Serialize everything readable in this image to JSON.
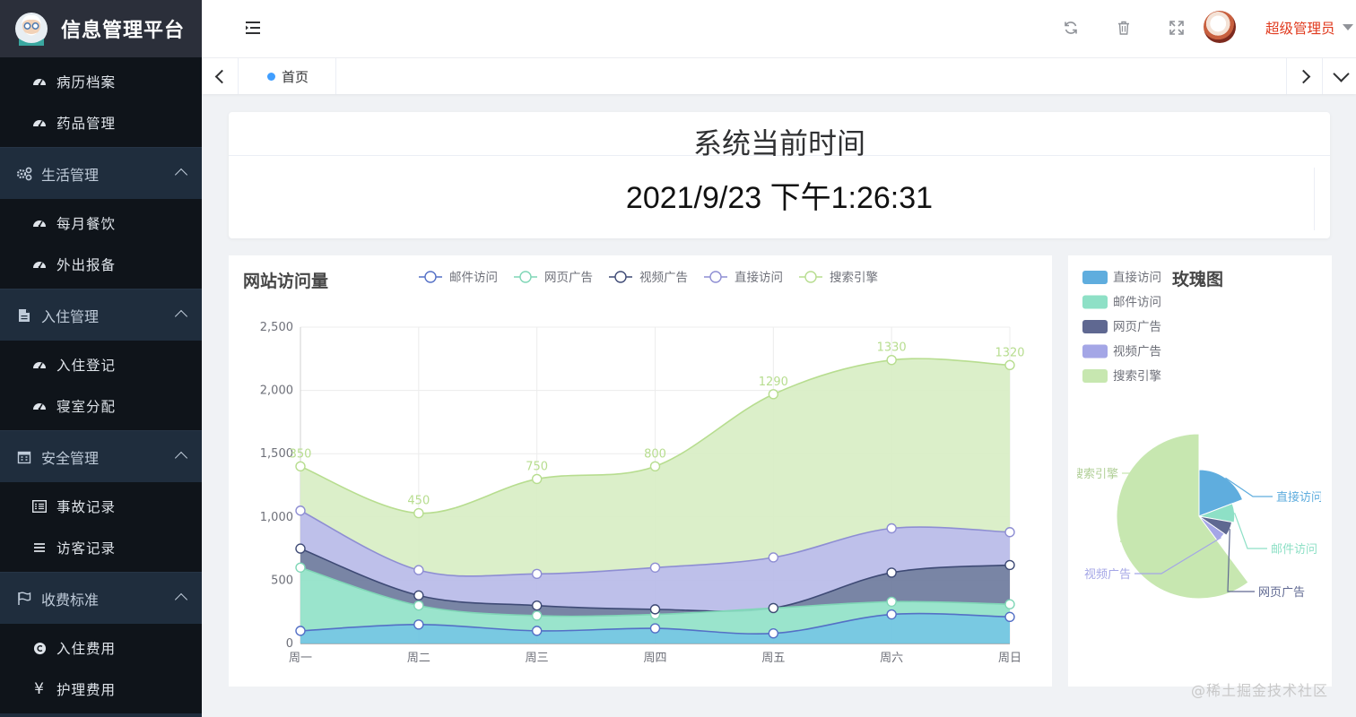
{
  "app": {
    "title": "信息管理平台"
  },
  "sidebar": {
    "top_items": [
      {
        "label": "病历档案",
        "icon": "dashboard-icon"
      },
      {
        "label": "药品管理",
        "icon": "dashboard-icon"
      }
    ],
    "groups": [
      {
        "title": "生活管理",
        "icon": "gears-icon",
        "expanded": true,
        "items": [
          {
            "label": "每月餐饮",
            "icon": "dashboard-icon"
          },
          {
            "label": "外出报备",
            "icon": "dashboard-icon"
          }
        ]
      },
      {
        "title": "入住管理",
        "icon": "document-icon",
        "expanded": true,
        "items": [
          {
            "label": "入住登记",
            "icon": "dashboard-icon"
          },
          {
            "label": "寝室分配",
            "icon": "dashboard-icon"
          }
        ]
      },
      {
        "title": "安全管理",
        "icon": "calendar-icon",
        "expanded": true,
        "items": [
          {
            "label": "事故记录",
            "icon": "list-alt-icon"
          },
          {
            "label": "访客记录",
            "icon": "list-icon"
          }
        ]
      },
      {
        "title": "收费标准",
        "icon": "flag-icon",
        "expanded": true,
        "items": [
          {
            "label": "入住费用",
            "icon": "copyright-icon"
          },
          {
            "label": "护理费用",
            "icon": "yen-icon"
          }
        ]
      }
    ]
  },
  "header": {
    "icons": [
      "hamburger-icon",
      "refresh-icon",
      "trash-icon",
      "fullscreen-icon"
    ],
    "username": "超级管理员"
  },
  "tabs": [
    {
      "label": "首页",
      "active": true
    }
  ],
  "time_card": {
    "title": "系统当前时间",
    "value": "2021/9/23 下午1:26:31"
  },
  "area_chart": {
    "title": "网站访问量",
    "chart_data": {
      "type": "area",
      "categories": [
        "周一",
        "周二",
        "周三",
        "周四",
        "周五",
        "周六",
        "周日"
      ],
      "ylim": [
        0,
        2500
      ],
      "yticks": [
        "0",
        "500",
        "1,000",
        "1,500",
        "2,000",
        "2,500"
      ],
      "stacked": true,
      "grid": true,
      "legend_position": "top",
      "series": [
        {
          "name": "邮件访问",
          "color": "#5470c6",
          "fill": "#6ec4e0",
          "values": [
            100,
            150,
            100,
            120,
            80,
            230,
            210
          ]
        },
        {
          "name": "网页广告",
          "color": "#7fd6b6",
          "fill": "#91e2c8",
          "values": [
            500,
            150,
            120,
            110,
            200,
            100,
            100
          ]
        },
        {
          "name": "视频广告",
          "color": "#3e4a75",
          "fill": "#6e7b9d",
          "values": [
            150,
            80,
            80,
            40,
            0,
            230,
            310
          ]
        },
        {
          "name": "直接访问",
          "color": "#8e8ed3",
          "fill": "#b9bbe8",
          "values": [
            300,
            200,
            250,
            330,
            400,
            350,
            260
          ]
        },
        {
          "name": "搜索引擎",
          "color": "#b7dd8f",
          "fill": "#d8eec4",
          "values": [
            350,
            450,
            750,
            800,
            1290,
            1330,
            1320
          ]
        }
      ],
      "data_labels": [
        "350",
        "450",
        "750",
        "800",
        "1290",
        "1330",
        "1320"
      ]
    }
  },
  "rose_chart": {
    "title": "玫瑰图",
    "chart_data": {
      "type": "pie",
      "rose": true,
      "legend_position": "left",
      "slices": [
        {
          "name": "直接访问",
          "color": "#5fadde",
          "value": 335
        },
        {
          "name": "邮件访问",
          "color": "#8ee0c6",
          "value": 150
        },
        {
          "name": "网页广告",
          "color": "#5f6891",
          "value": 120
        },
        {
          "name": "视频广告",
          "color": "#a4a6e6",
          "value": 90
        },
        {
          "name": "搜索引擎",
          "color": "#c7e7b0",
          "value": 1050
        }
      ],
      "visible_labels": [
        "直接访问",
        "邮件访问",
        "网页广告",
        "视频广告",
        "搜索引擎"
      ]
    }
  },
  "watermark": "@稀土掘金技术社区"
}
